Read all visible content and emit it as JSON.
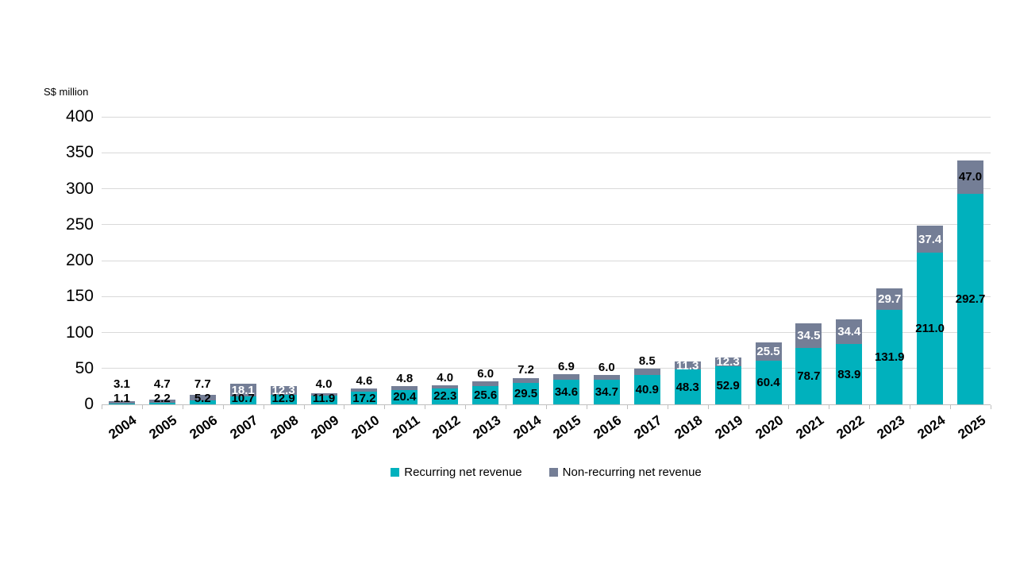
{
  "chart_data": {
    "type": "bar",
    "stacked": true,
    "ylabel": "S$ million",
    "ylim": [
      0,
      400
    ],
    "ytick_step": 50,
    "grid": true,
    "legend_position": "bottom",
    "categories": [
      "2004",
      "2005",
      "2006",
      "2007",
      "2008",
      "2009",
      "2010",
      "2011",
      "2012",
      "2013",
      "2014",
      "2015",
      "2016",
      "2017",
      "2018",
      "2019",
      "2020",
      "2021",
      "2022",
      "2023",
      "2024",
      "2025"
    ],
    "series": [
      {
        "name": "Recurring net revenue",
        "color": "#00B1BD",
        "label_color": "#000000",
        "values": [
          1.1,
          2.2,
          5.2,
          10.7,
          12.9,
          11.9,
          17.2,
          20.4,
          22.3,
          25.6,
          29.5,
          34.6,
          34.7,
          40.9,
          48.3,
          52.9,
          60.4,
          78.7,
          83.9,
          131.9,
          211.0,
          292.7
        ]
      },
      {
        "name": "Non-recurring net revenue",
        "color": "#747E96",
        "values": [
          3.1,
          4.7,
          7.7,
          18.1,
          12.3,
          4.0,
          4.6,
          4.8,
          4.0,
          6.0,
          7.2,
          6.9,
          6.0,
          8.5,
          11.3,
          12.3,
          25.5,
          34.5,
          34.4,
          29.7,
          37.4,
          47.0
        ],
        "label_styles": [
          "above",
          "above",
          "above",
          "in-white",
          "in-white",
          "above",
          "above",
          "above",
          "above",
          "above",
          "above",
          "above",
          "above",
          "above",
          "in-white",
          "in-white",
          "in-white",
          "in-white",
          "in-white",
          "in-white",
          "in-white",
          "in-black"
        ]
      }
    ]
  }
}
